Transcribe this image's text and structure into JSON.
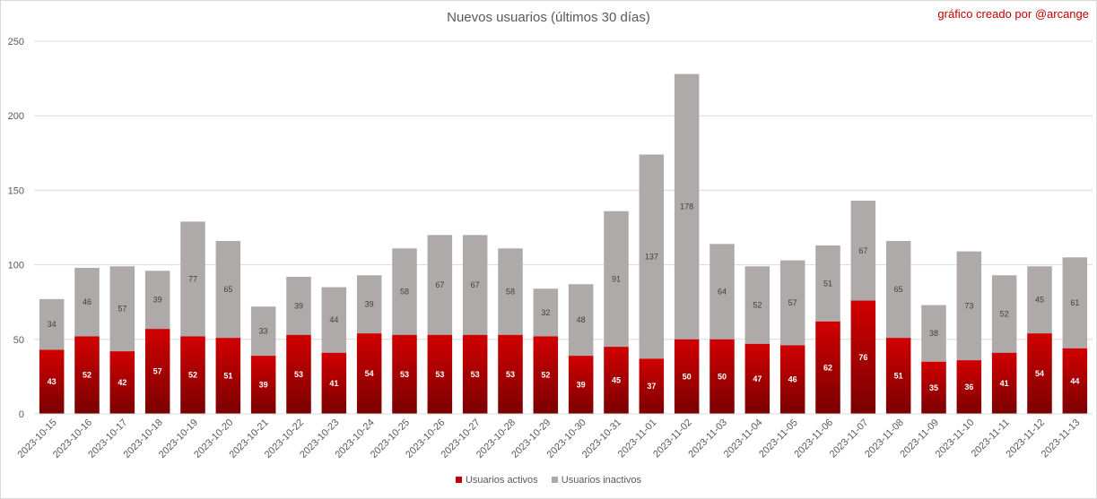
{
  "credit": "gráfico creado por @arcange",
  "chart_data": {
    "type": "bar",
    "stacked": true,
    "title": "Nuevos usuarios (últimos 30 días)",
    "categories": [
      "2023-10-15",
      "2023-10-16",
      "2023-10-17",
      "2023-10-18",
      "2023-10-19",
      "2023-10-20",
      "2023-10-21",
      "2023-10-22",
      "2023-10-23",
      "2023-10-24",
      "2023-10-25",
      "2023-10-26",
      "2023-10-27",
      "2023-10-28",
      "2023-10-29",
      "2023-10-30",
      "2023-10-31",
      "2023-11-01",
      "2023-11-02",
      "2023-11-03",
      "2023-11-04",
      "2023-11-05",
      "2023-11-06",
      "2023-11-07",
      "2023-11-08",
      "2023-11-09",
      "2023-11-10",
      "2023-11-11",
      "2023-11-12",
      "2023-11-13"
    ],
    "series": [
      {
        "name": "Usuarios activos",
        "color": "#c00000",
        "values": [
          43,
          52,
          42,
          57,
          52,
          51,
          39,
          53,
          41,
          54,
          53,
          53,
          53,
          53,
          52,
          39,
          45,
          37,
          50,
          50,
          47,
          46,
          62,
          76,
          51,
          35,
          36,
          41,
          54,
          44
        ]
      },
      {
        "name": "Usuarios inactivos",
        "color": "#aeaaaa",
        "values": [
          34,
          46,
          57,
          39,
          77,
          65,
          33,
          39,
          44,
          39,
          58,
          67,
          67,
          58,
          32,
          48,
          91,
          137,
          178,
          64,
          52,
          57,
          51,
          67,
          65,
          38,
          73,
          52,
          45,
          61
        ]
      }
    ],
    "ylim": [
      0,
      250
    ],
    "yticks": [
      0,
      50,
      100,
      150,
      200,
      250
    ],
    "grid": true,
    "legend": "bottom-center",
    "xlabel": "",
    "ylabel": ""
  }
}
